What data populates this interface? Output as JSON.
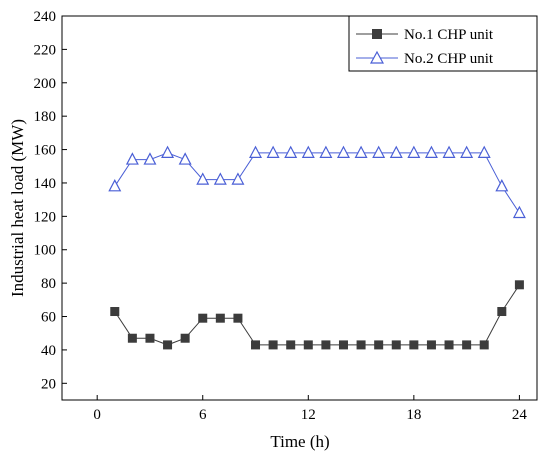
{
  "chart_data": {
    "type": "line",
    "xlabel": "Time (h)",
    "ylabel": "Industrial heat load (MW)",
    "xlim": [
      -2,
      25
    ],
    "ylim": [
      10,
      240
    ],
    "xticks": [
      0,
      6,
      12,
      18,
      24
    ],
    "yticks": [
      20,
      40,
      60,
      80,
      100,
      120,
      140,
      160,
      180,
      200,
      220,
      240
    ],
    "grid": false,
    "legend_position": "top-right",
    "x": [
      1,
      2,
      3,
      4,
      5,
      6,
      7,
      8,
      9,
      10,
      11,
      12,
      13,
      14,
      15,
      16,
      17,
      18,
      19,
      20,
      21,
      22,
      23,
      24
    ],
    "series": [
      {
        "name": "No.1 CHP unit",
        "color": "#3c3c3c",
        "marker": "filled-square",
        "values": [
          63,
          47,
          47,
          43,
          47,
          59,
          59,
          59,
          43,
          43,
          43,
          43,
          43,
          43,
          43,
          43,
          43,
          43,
          43,
          43,
          43,
          43,
          63,
          79
        ]
      },
      {
        "name": "No.2 CHP unit",
        "color": "#4a5fd6",
        "marker": "open-triangle",
        "values": [
          138,
          154,
          154,
          158,
          154,
          142,
          142,
          142,
          158,
          158,
          158,
          158,
          158,
          158,
          158,
          158,
          158,
          158,
          158,
          158,
          158,
          158,
          138,
          122
        ]
      }
    ]
  }
}
